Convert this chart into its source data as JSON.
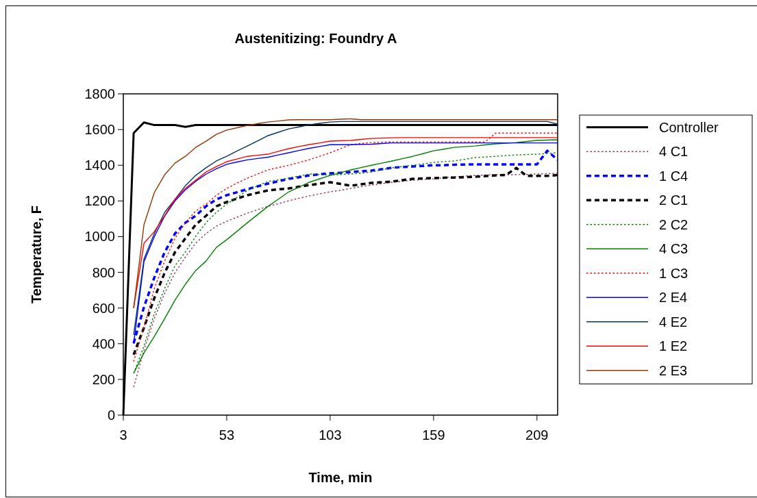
{
  "chart_data": {
    "type": "line",
    "title": "Austenitizing: Foundry A",
    "xlabel": "Time, min",
    "ylabel": "Temperature, F",
    "categories": [
      "3",
      null,
      null,
      null,
      null,
      null,
      null,
      null,
      null,
      null,
      "53",
      null,
      null,
      null,
      null,
      null,
      null,
      null,
      null,
      null,
      "103",
      null,
      null,
      null,
      null,
      null,
      null,
      null,
      null,
      null,
      "159",
      null,
      null,
      null,
      null,
      null,
      null,
      null,
      null,
      null,
      "209",
      null,
      null
    ],
    "ylim": [
      0,
      1800
    ],
    "yticks": [
      0,
      200,
      400,
      600,
      800,
      1000,
      1200,
      1400,
      1600,
      1800
    ],
    "grid": false,
    "legend": "right",
    "marker": "none",
    "series": [
      {
        "name": "Controller",
        "color": "#000000",
        "line_style": "solid",
        "values": [
          0,
          1580,
          1640,
          1625,
          1625,
          1625,
          1615,
          1625,
          1625,
          1625,
          1625,
          1625,
          1625,
          1625,
          1625,
          1625,
          1625,
          1625,
          1625,
          1625,
          1625,
          1625,
          1625,
          1625,
          1625,
          1625,
          1625,
          1625,
          1625,
          1625,
          1625,
          1625,
          1625,
          1625,
          1625,
          1625,
          1625,
          1625,
          1625,
          1625,
          1625,
          1625,
          1625
        ]
      },
      {
        "name": "4 C1",
        "color": "#993366",
        "line_style": "dotted",
        "values": [
          null,
          157,
          365,
          541,
          683,
          798,
          886,
          963,
          1017,
          1059,
          1086,
          1109,
          1132,
          1151,
          1170,
          1185,
          1201,
          1215,
          1228,
          1240,
          1251,
          1260,
          1270,
          1280,
          1289,
          1297,
          1305,
          1310,
          1316,
          1320,
          1324,
          1330,
          1335,
          1339,
          1343,
          1345,
          1347,
          1347,
          1347,
          1349,
          1351,
          1353,
          1355
        ]
      },
      {
        "name": "1 C4",
        "color": "#0000ff",
        "line_style": "dashed",
        "values": [
          null,
          403,
          606,
          771,
          913,
          1017,
          1078,
          1117,
          1170,
          1209,
          1232,
          1249,
          1266,
          1282,
          1297,
          1310,
          1324,
          1333,
          1343,
          1349,
          1355,
          1358,
          1362,
          1366,
          1370,
          1378,
          1386,
          1390,
          1393,
          1396,
          1400,
          1400,
          1403,
          1404,
          1405,
          1405,
          1405,
          1405,
          1405,
          1405,
          1405,
          1481,
          1430
        ]
      },
      {
        "name": "2 C1",
        "color": "#000000",
        "line_style": "dashed",
        "values": [
          null,
          338,
          491,
          656,
          798,
          913,
          990,
          1067,
          1117,
          1170,
          1194,
          1213,
          1232,
          1246,
          1259,
          1265,
          1270,
          1280,
          1289,
          1297,
          1305,
          1295,
          1285,
          1293,
          1301,
          1305,
          1309,
          1316,
          1324,
          1326,
          1328,
          1330,
          1331,
          1333,
          1335,
          1339,
          1343,
          1345,
          1385,
          1340,
          1340,
          1340,
          1345
        ]
      },
      {
        "name": "2 C2",
        "color": "#008000",
        "line_style": "dotted",
        "values": [
          null,
          234,
          388,
          568,
          710,
          837,
          913,
          1002,
          1078,
          1136,
          1182,
          1220,
          1259,
          1285,
          1309,
          1318,
          1328,
          1340,
          1351,
          1347,
          1345,
          1348,
          1351,
          1356,
          1362,
          1374,
          1386,
          1393,
          1400,
          1408,
          1416,
          1420,
          1424,
          1433,
          1443,
          1446,
          1450,
          1454,
          1458,
          1460,
          1462,
          1466,
          1470
        ]
      },
      {
        "name": "4 C3",
        "color": "#008000",
        "line_style": "solid",
        "values": [
          null,
          234,
          349,
          441,
          541,
          644,
          733,
          810,
          863,
          940,
          983,
          1030,
          1078,
          1124,
          1170,
          1210,
          1251,
          1278,
          1305,
          1324,
          1343,
          1358,
          1374,
          1387,
          1400,
          1412,
          1424,
          1437,
          1450,
          1465,
          1481,
          1490,
          1500,
          1504,
          1508,
          1514,
          1520,
          1523,
          1527,
          1533,
          1539,
          1541,
          1543
        ]
      },
      {
        "name": "1 C3",
        "color": "#ff0000",
        "line_style": "dotted",
        "values": [
          null,
          300,
          491,
          710,
          863,
          990,
          1078,
          1143,
          1182,
          1232,
          1270,
          1300,
          1328,
          1351,
          1374,
          1387,
          1400,
          1415,
          1431,
          1450,
          1470,
          1493,
          1516,
          1522,
          1527,
          1529,
          1531,
          1531,
          1531,
          1531,
          1531,
          1531,
          1531,
          1531,
          1531,
          1531,
          1580,
          1580,
          1580,
          1580,
          1580,
          1580,
          1580
        ]
      },
      {
        "name": "2 E4",
        "color": "#0000ff",
        "line_style": "solid",
        "values": [
          null,
          400,
          860,
          1000,
          1115,
          1200,
          1262,
          1310,
          1350,
          1380,
          1405,
          1418,
          1430,
          1438,
          1445,
          1458,
          1470,
          1483,
          1495,
          1505,
          1515,
          1515,
          1515,
          1517,
          1518,
          1522,
          1525,
          1525,
          1525,
          1525,
          1525,
          1525,
          1525,
          1525,
          1525,
          1525,
          1525,
          1525,
          1525,
          1525,
          1525,
          1525,
          1525
        ]
      },
      {
        "name": "4 E2",
        "color": "#003366",
        "line_style": "solid",
        "values": [
          null,
          450,
          875,
          1017,
          1136,
          1209,
          1285,
          1343,
          1386,
          1424,
          1450,
          1480,
          1508,
          1537,
          1566,
          1585,
          1604,
          1615,
          1627,
          1635,
          1642,
          1645,
          1645,
          1645,
          1645,
          1645,
          1645,
          1645,
          1645,
          1645,
          1645,
          1645,
          1645,
          1645,
          1645,
          1645,
          1645,
          1645,
          1645,
          1645,
          1645,
          1645,
          1630
        ]
      },
      {
        "name": "1 E2",
        "color": "#ff0000",
        "line_style": "solid",
        "values": [
          null,
          600,
          963,
          1028,
          1117,
          1209,
          1270,
          1316,
          1362,
          1393,
          1420,
          1435,
          1450,
          1456,
          1462,
          1478,
          1493,
          1505,
          1516,
          1525,
          1535,
          1537,
          1539,
          1545,
          1550,
          1552,
          1554,
          1555,
          1555,
          1555,
          1555,
          1555,
          1555,
          1555,
          1555,
          1555,
          1555,
          1555,
          1555,
          1555,
          1555,
          1555,
          1555
        ]
      },
      {
        "name": "2 E3",
        "color": "#993300",
        "line_style": "solid",
        "values": [
          null,
          600,
          1067,
          1247,
          1347,
          1412,
          1450,
          1500,
          1535,
          1573,
          1597,
          1610,
          1623,
          1633,
          1642,
          1648,
          1654,
          1655,
          1655,
          1655,
          1655,
          1658,
          1660,
          1655,
          1655,
          1655,
          1655,
          1655,
          1655,
          1655,
          1655,
          1655,
          1655,
          1655,
          1655,
          1655,
          1655,
          1655,
          1655,
          1655,
          1655,
          1655,
          1655
        ]
      }
    ]
  }
}
